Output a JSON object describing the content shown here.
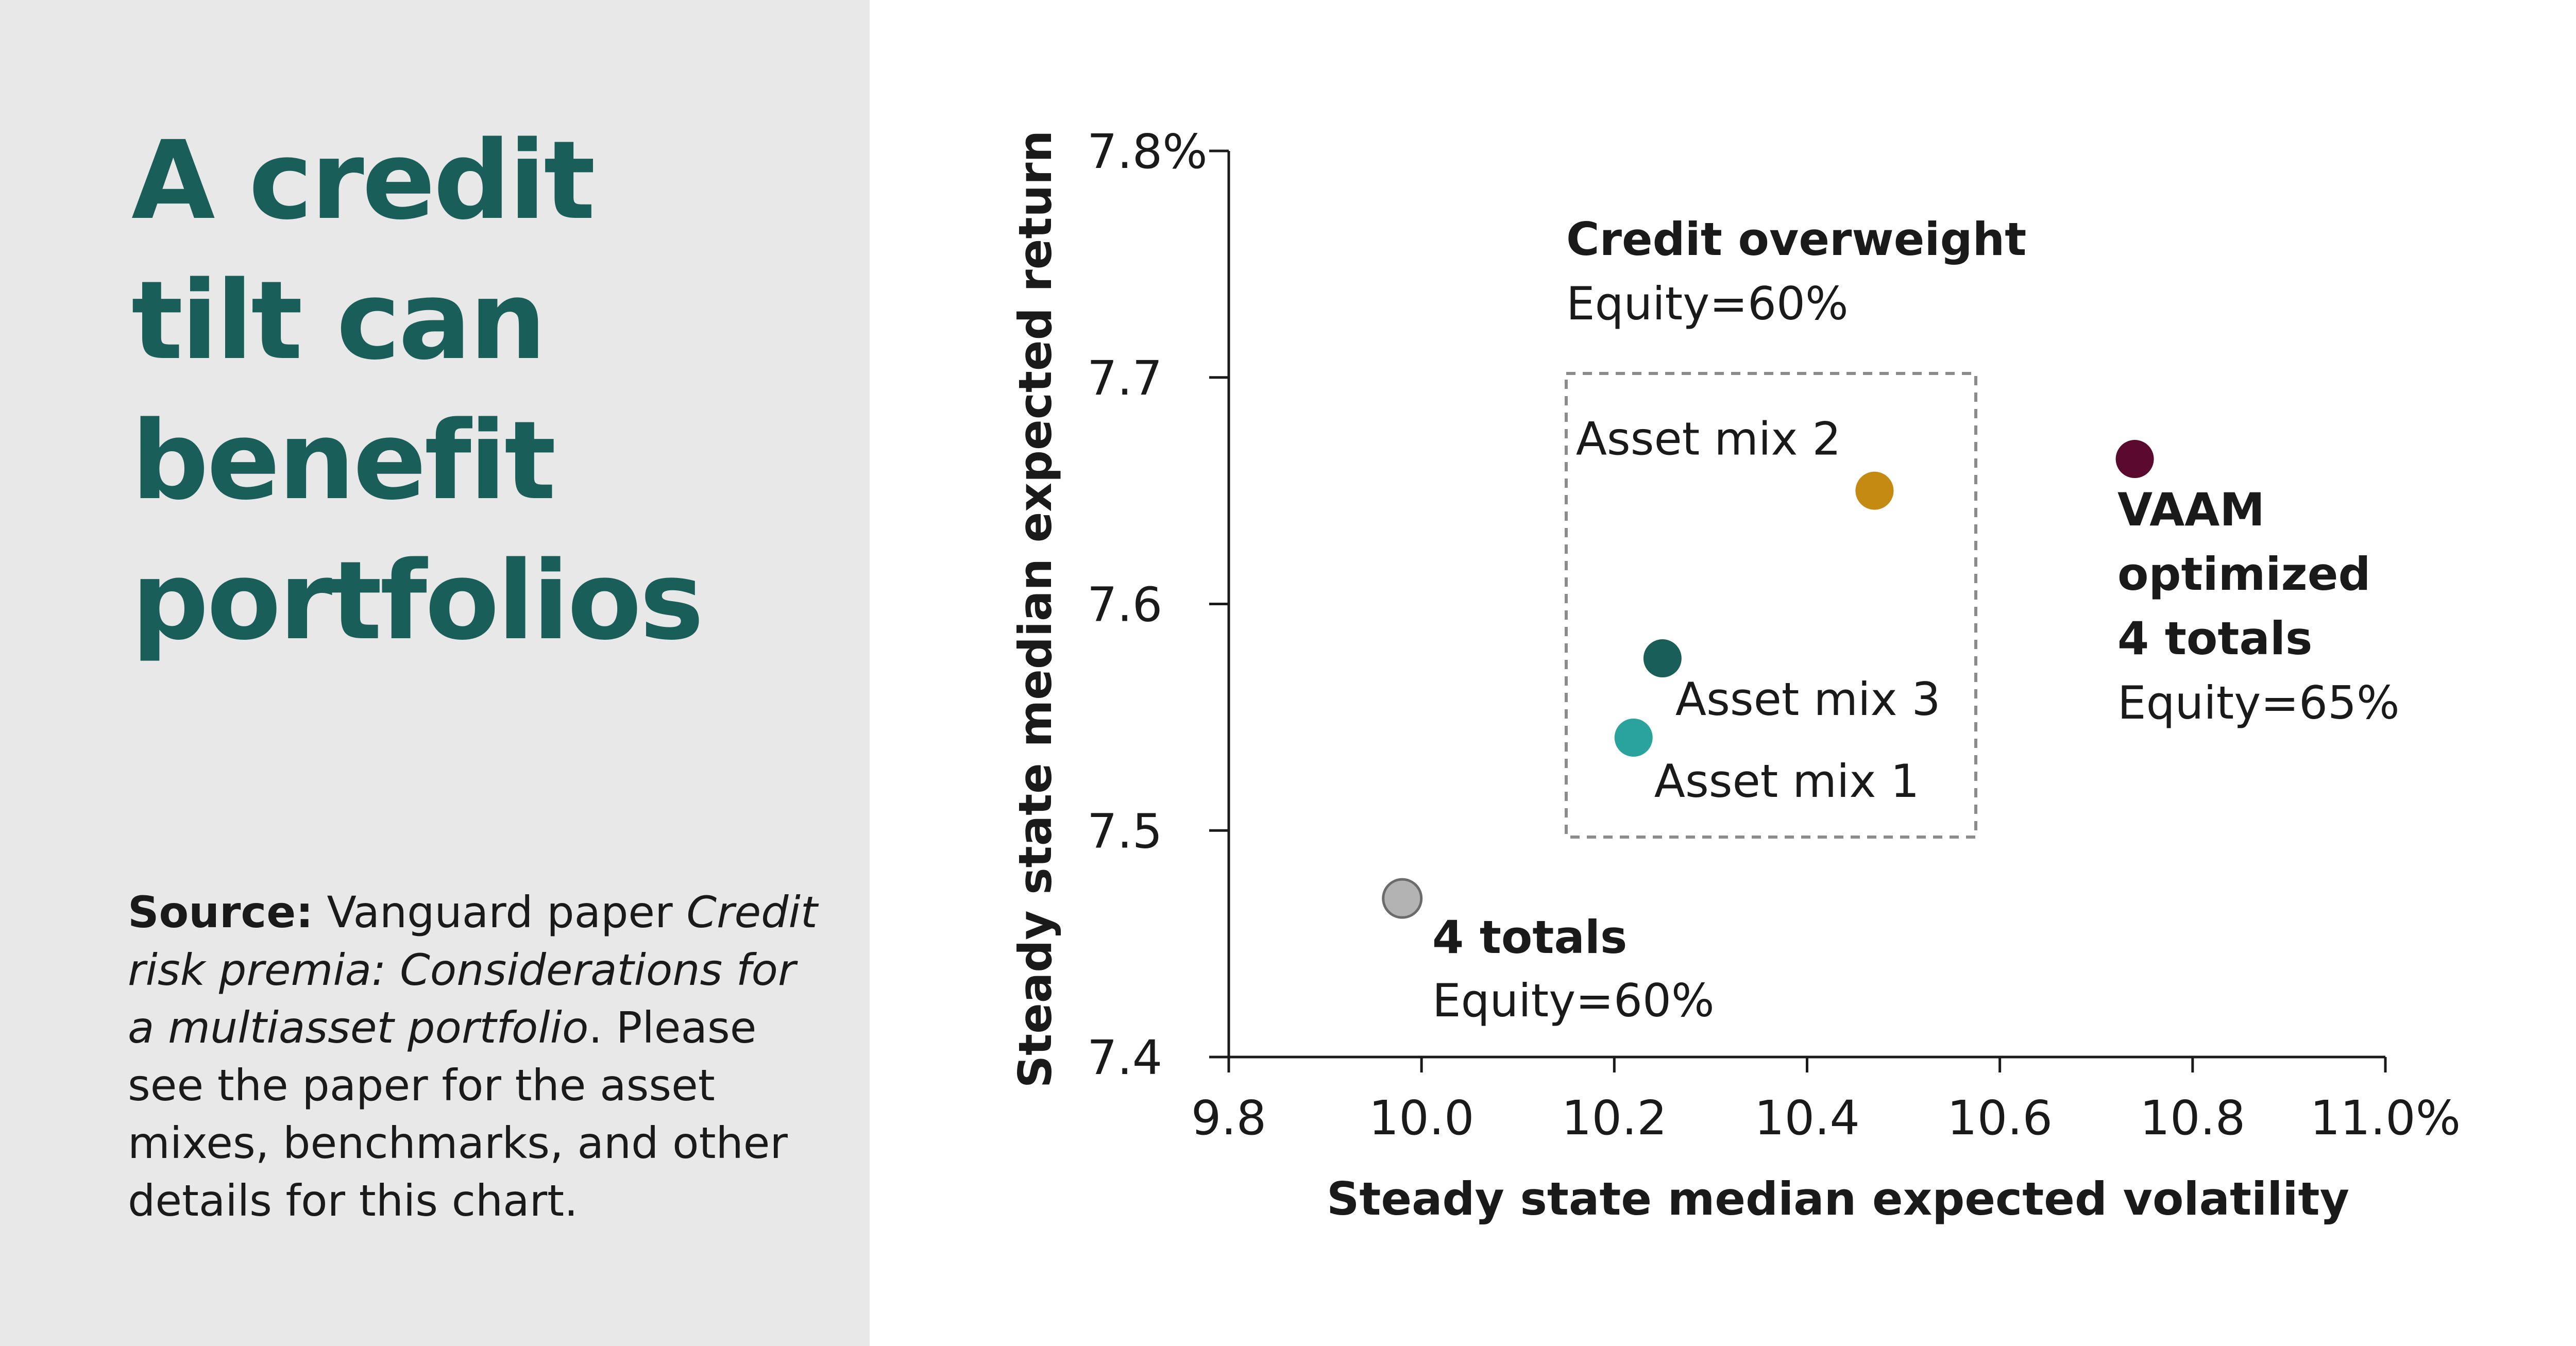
{
  "headline": [
    "A credit",
    "tilt can",
    "benefit",
    "portfolios"
  ],
  "source": {
    "label": "Source:",
    "text_before": "Vanguard paper",
    "paper_title": "Credit risk premia: Considerations for a multiasset portfolio",
    "text_after": ". Please see the paper for the asset mixes, benchmarks, and other details for this chart."
  },
  "colors": {
    "headline": "#1a5e59",
    "left_panel_bg": "#e8e8e8",
    "asset_mix_1": "#2aa39c",
    "asset_mix_2": "#c48a12",
    "asset_mix_3": "#1a5e59",
    "vaam": "#5a0a2e",
    "four_totals": "#b3b3b3"
  },
  "chart_data": {
    "type": "scatter",
    "xlabel": "Steady state median expected volatility",
    "ylabel": "Steady state median expected return",
    "xlim": [
      9.8,
      11.0
    ],
    "ylim": [
      7.4,
      7.8
    ],
    "x_ticks": [
      "9.8",
      "10.0",
      "10.2",
      "10.4",
      "10.6",
      "10.8",
      "11.0%"
    ],
    "y_ticks": [
      "7.4",
      "7.5",
      "7.6",
      "7.7",
      "7.8%"
    ],
    "points": [
      {
        "name": "Asset mix 2",
        "x": 10.47,
        "y": 7.65,
        "color": "#c48a12"
      },
      {
        "name": "Asset mix 3",
        "x": 10.25,
        "y": 7.576,
        "color": "#1a5e59"
      },
      {
        "name": "Asset mix 1",
        "x": 10.22,
        "y": 7.541,
        "color": "#2aa39c"
      },
      {
        "name": "VAAM optimized 4 totals",
        "x": 10.74,
        "y": 7.664,
        "color": "#5a0a2e"
      },
      {
        "name": "4 totals",
        "x": 9.98,
        "y": 7.47,
        "color": "#b3b3b3"
      }
    ],
    "annotations": {
      "credit_overweight_title": "Credit overweight",
      "credit_overweight_equity": "Equity=60%",
      "vaam_line1": "VAAM",
      "vaam_line2": "optimized",
      "vaam_line3": "4 totals",
      "vaam_equity": "Equity=65%",
      "totals_title": "4 totals",
      "totals_equity": "Equity=60%"
    }
  }
}
